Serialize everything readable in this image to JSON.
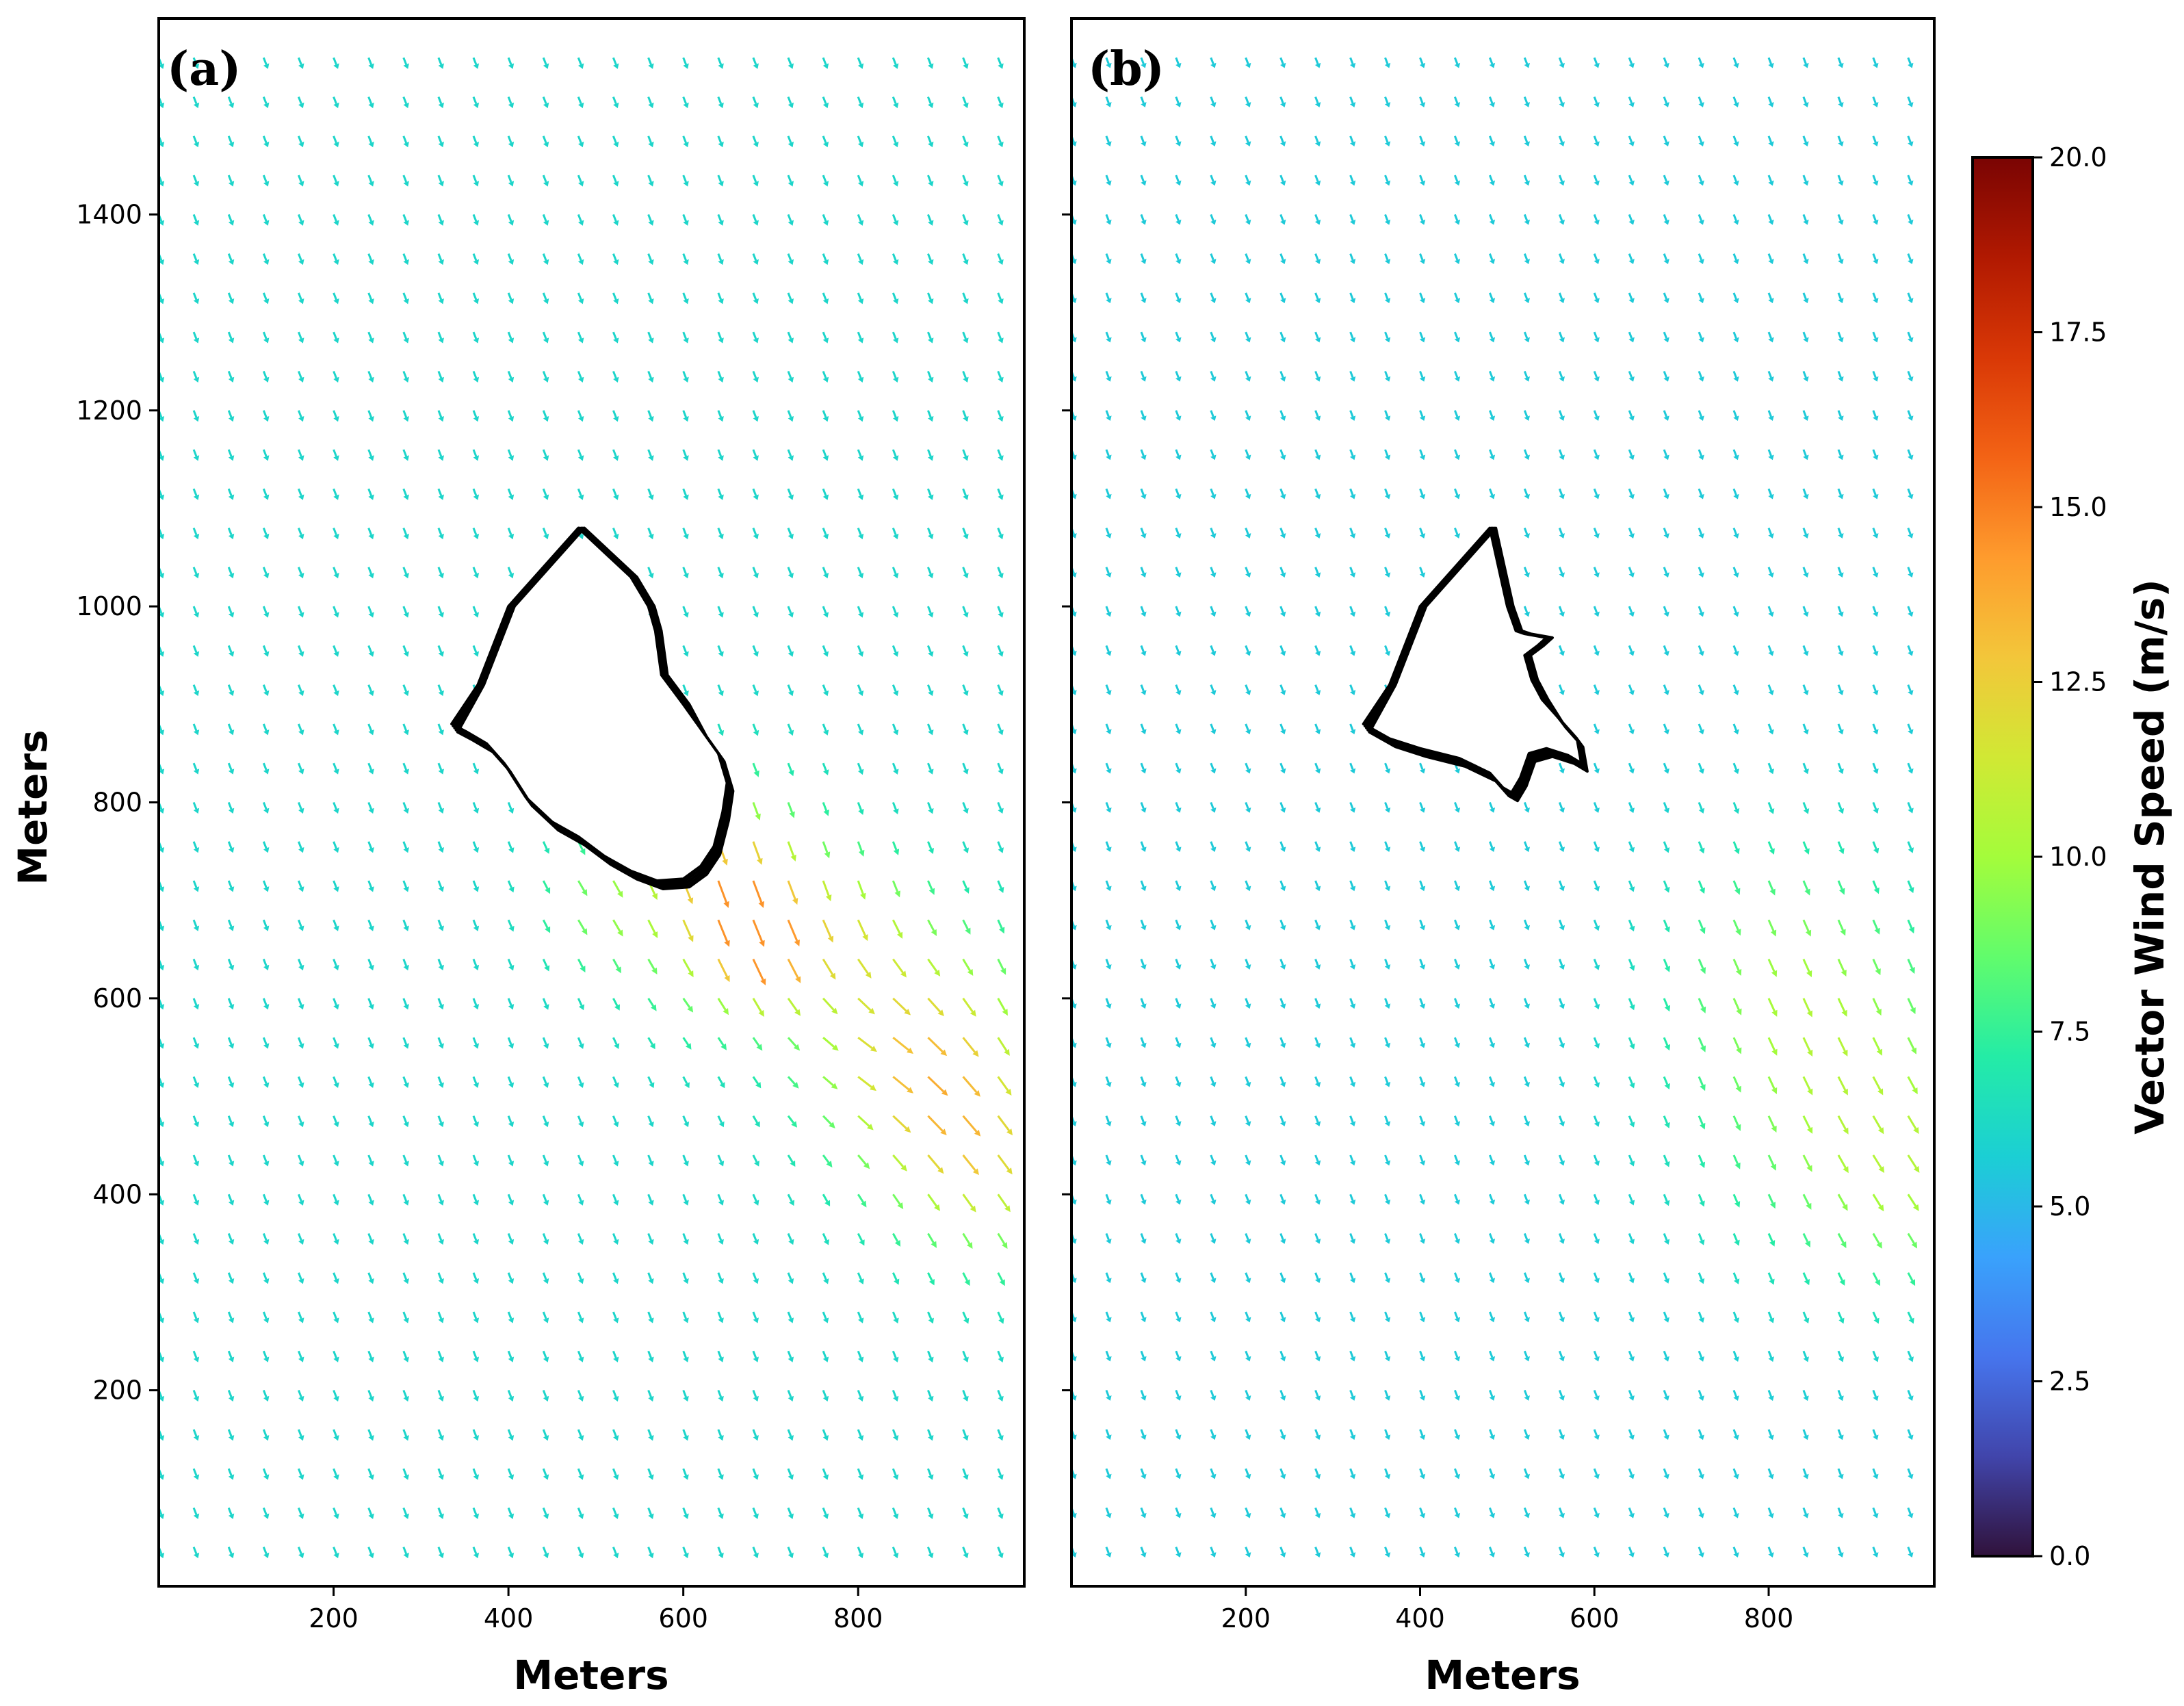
{
  "chart_data": [
    {
      "panel": "(a)",
      "type": "quiver",
      "xlabel": "Meters",
      "ylabel": "Meters",
      "xlim": [
        0,
        990
      ],
      "ylim": [
        0,
        1600
      ],
      "xticks": [
        "200",
        "400",
        "600",
        "800"
      ],
      "yticks": [
        "200",
        "400",
        "600",
        "800",
        "1000",
        "1200",
        "1400"
      ],
      "grid": false,
      "field": {
        "x_start": 0,
        "x_step": 40,
        "y_start": 40,
        "y_step": 40,
        "ambient_speed_ms": 6.0,
        "ambient_direction": "north-northwest wind, vectors pointing south-southeast",
        "max_speed_ms": 14.5,
        "max_speed_region": "downwind (southeast) of the fire perimeter, around x 600-700 m, y 640-760 m"
      },
      "fire_perimeters": [
        {
          "description": "outer fire perimeter contour (several overlapping lines)",
          "points": [
            [
              335,
              880
            ],
            [
              352,
              872
            ],
            [
              375,
              860
            ],
            [
              395,
              840
            ],
            [
              420,
              805
            ],
            [
              450,
              780
            ],
            [
              480,
              765
            ],
            [
              510,
              745
            ],
            [
              540,
              730
            ],
            [
              570,
              720
            ],
            [
              600,
              722
            ],
            [
              620,
              735
            ],
            [
              635,
              755
            ],
            [
              645,
              790
            ],
            [
              650,
              820
            ],
            [
              640,
              850
            ],
            [
              620,
              875
            ],
            [
              600,
              900
            ],
            [
              575,
              930
            ],
            [
              568,
              975
            ],
            [
              560,
              1000
            ],
            [
              540,
              1030
            ],
            [
              480,
              1080
            ],
            [
              400,
              1000
            ],
            [
              365,
              920
            ]
          ]
        }
      ]
    },
    {
      "panel": "(b)",
      "type": "quiver",
      "xlabel": "Meters",
      "ylabel": "",
      "xlim": [
        0,
        990
      ],
      "ylim": [
        0,
        1600
      ],
      "xticks": [
        "200",
        "400",
        "600",
        "800"
      ],
      "grid": false,
      "field": {
        "x_start": 0,
        "x_step": 40,
        "y_start": 40,
        "y_step": 40,
        "ambient_speed_ms": 5.5,
        "ambient_direction": "north-northwest wind, vectors pointing south-southeast",
        "max_speed_ms": 10.5,
        "max_speed_region": "southeast band, around x 750-990 m, y 380-700 m"
      },
      "fire_perimeters": [
        {
          "description": "fire perimeter contour with indented east side (several overlapping lines)",
          "points": [
            [
              335,
              880
            ],
            [
              365,
              865
            ],
            [
              400,
              855
            ],
            [
              445,
              845
            ],
            [
              480,
              830
            ],
            [
              495,
              815
            ],
            [
              505,
              810
            ],
            [
              515,
              825
            ],
            [
              525,
              850
            ],
            [
              545,
              855
            ],
            [
              570,
              848
            ],
            [
              585,
              840
            ],
            [
              580,
              865
            ],
            [
              560,
              885
            ],
            [
              540,
              905
            ],
            [
              528,
              925
            ],
            [
              520,
              950
            ],
            [
              535,
              960
            ],
            [
              545,
              968
            ],
            [
              520,
              972
            ],
            [
              510,
              975
            ],
            [
              500,
              1000
            ],
            [
              480,
              1080
            ],
            [
              400,
              1000
            ],
            [
              365,
              920
            ]
          ]
        }
      ]
    }
  ],
  "colorbar": {
    "label": "Vector Wind Speed (m/s)",
    "min": 0.0,
    "max": 20.0,
    "ticks": [
      "0.0",
      "2.5",
      "5.0",
      "7.5",
      "10.0",
      "12.5",
      "15.0",
      "17.5",
      "20.0"
    ],
    "colormap": "turbo",
    "colors": [
      "#30123b",
      "#4145ab",
      "#4675ed",
      "#39a2fc",
      "#1bcfd4",
      "#24eca6",
      "#61fc6c",
      "#a4fc3b",
      "#d1e834",
      "#f3c63a",
      "#fe9b2d",
      "#f36315",
      "#d93806",
      "#b11901",
      "#7a0403"
    ]
  }
}
